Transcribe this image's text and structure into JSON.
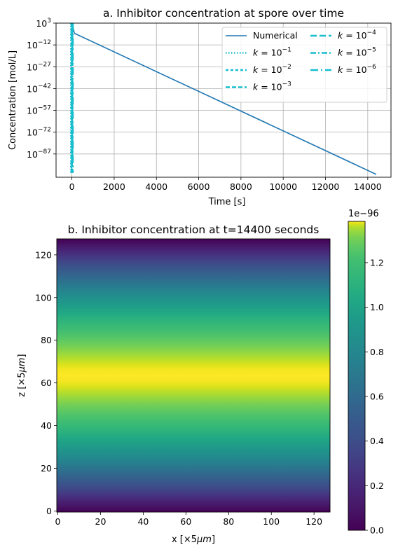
{
  "chart_data": [
    {
      "type": "line",
      "title": "a. Inhibitor concentration at spore over time",
      "xlabel": "Time [s]",
      "ylabel": "Concentration [mol/L]",
      "yscale": "log",
      "xlim": [
        -750,
        15100
      ],
      "ylim_exponent": [
        -103,
        3
      ],
      "xticks": [
        0,
        2000,
        4000,
        6000,
        8000,
        10000,
        12000,
        14000
      ],
      "xtick_labels": [
        "0",
        "2000",
        "4000",
        "6000",
        "8000",
        "10000",
        "12000",
        "14000"
      ],
      "ytick_exponents": [
        3,
        -12,
        -27,
        -42,
        -57,
        -72,
        -87
      ],
      "ytick_base": "10",
      "ytick_labels": [
        "3",
        "−12",
        "−27",
        "−42",
        "−57",
        "−72",
        "−87"
      ],
      "grid": true,
      "legend": {
        "placement": "top-right",
        "columns": 2
      },
      "series": [
        {
          "name": "Numerical",
          "style": "solid",
          "color": "#1f77b4",
          "x": [
            0,
            120,
            14400
          ],
          "log10_y": [
            3,
            -4,
            -101
          ]
        },
        {
          "name": "k = 10",
          "exp": "−1",
          "style": "dotted",
          "color": "#17becf",
          "x": [
            0,
            0,
            0
          ],
          "log10_y": [
            3,
            -100,
            -100
          ]
        },
        {
          "name": "k = 10",
          "exp": "−2",
          "style": "dashed-short",
          "color": "#17becf",
          "x": [
            0,
            0,
            0
          ],
          "log10_y": [
            3,
            -100,
            -100
          ]
        },
        {
          "name": "k = 10",
          "exp": "−3",
          "style": "dashed",
          "color": "#17becf",
          "x": [
            0,
            0,
            0
          ],
          "log10_y": [
            3,
            -100,
            -100
          ]
        },
        {
          "name": "k = 10",
          "exp": "−4",
          "style": "dashed-long",
          "color": "#17becf",
          "x": [
            0,
            0,
            0
          ],
          "log10_y": [
            3,
            -100,
            -100
          ]
        },
        {
          "name": "k = 10",
          "exp": "−5",
          "style": "dashdot",
          "color": "#17becf",
          "x": [
            0,
            0,
            0
          ],
          "log10_y": [
            3,
            -100,
            -100
          ]
        },
        {
          "name": "k = 10",
          "exp": "−6",
          "style": "dashdot-long",
          "color": "#17becf",
          "x": [
            0,
            0,
            0
          ],
          "log10_y": [
            3,
            -100,
            -100
          ]
        }
      ]
    },
    {
      "type": "heatmap",
      "title": "b. Inhibitor concentration at t=14400 seconds",
      "xlabel": "x [×5μm]",
      "ylabel": "z [×5μm]",
      "xlim": [
        -0.5,
        127.5
      ],
      "ylim": [
        -0.5,
        127.5
      ],
      "xticks": [
        0,
        20,
        40,
        60,
        80,
        100,
        120
      ],
      "yticks": [
        0,
        20,
        40,
        60,
        80,
        100,
        120
      ],
      "colormap": "viridis",
      "profile": "varies along z only; peak at z≈63.5, zero at edges",
      "vmin": 0,
      "vmax": 1.385,
      "colorbar": {
        "offset_label": "1e−96",
        "ticks": [
          0.0,
          0.2,
          0.4,
          0.6,
          0.8,
          1.0,
          1.2
        ],
        "tick_labels": [
          "0.0",
          "0.2",
          "0.4",
          "0.6",
          "0.8",
          "1.0",
          "1.2"
        ]
      }
    }
  ]
}
